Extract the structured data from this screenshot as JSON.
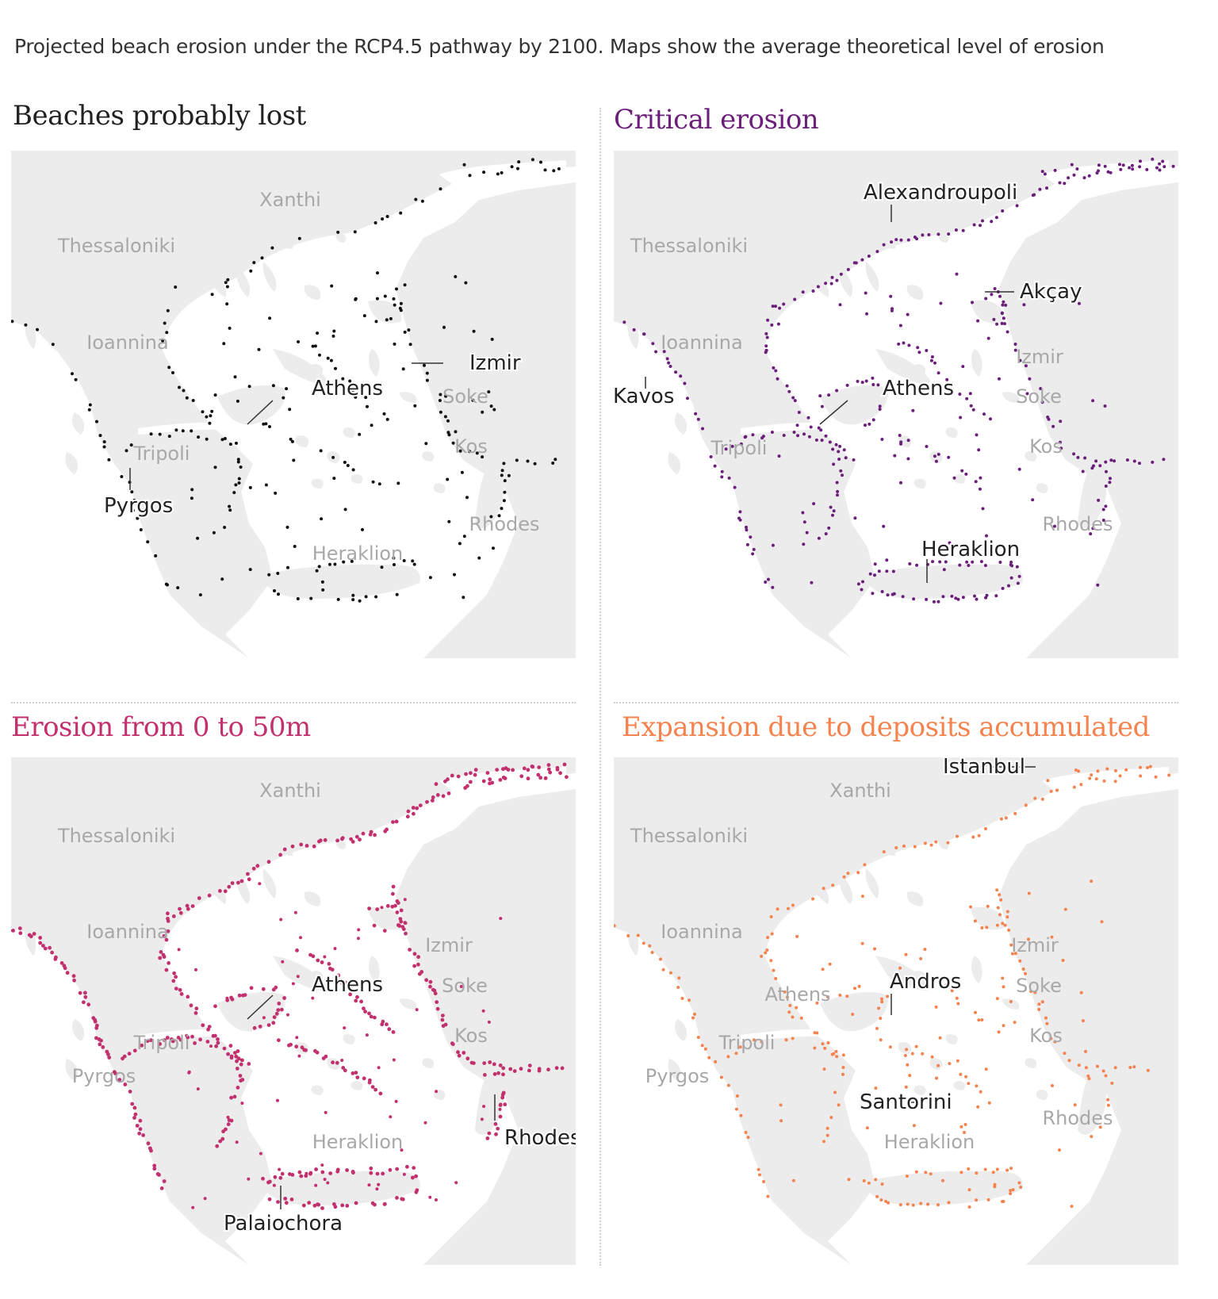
{
  "subtitle": "Projected beach erosion under the RCP4.5 pathway by 2100. Maps show the average theoretical level of erosion",
  "colors": {
    "land": "#ececec",
    "sea": "#ffffff",
    "label_grey": "#a8a8a8",
    "label_dark": "#222222"
  },
  "panels": [
    {
      "title": "Beaches probably lost",
      "color": "#111111",
      "grey_labels": [
        "Xanthi",
        "Thessaloniki",
        "Ioannina",
        "Soke",
        "Tripoli",
        "Kos",
        "Rhodes",
        "Heraklion"
      ],
      "dark_labels": [
        "Izmir",
        "Athens",
        "Pyrgos"
      ]
    },
    {
      "title": "Critical erosion",
      "color": "#6b1f7b",
      "grey_labels": [
        "Thessaloniki",
        "Ioannina",
        "Izmir",
        "Soke",
        "Tripoli",
        "Kos",
        "Rhodes"
      ],
      "dark_labels": [
        "Alexandroupoli",
        "Akçay",
        "Kavos",
        "Athens",
        "Heraklion"
      ]
    },
    {
      "title": "Erosion from 0 to 50m",
      "color": "#c2306e",
      "grey_labels": [
        "Xanthi",
        "Thessaloniki",
        "Ioannina",
        "Izmir",
        "Soke",
        "Tripoli",
        "Kos",
        "Pyrgos",
        "Heraklion"
      ],
      "dark_labels": [
        "Athens",
        "Rhodes",
        "Palaiochora"
      ]
    },
    {
      "title": "Expansion due to deposits accumulated",
      "color": "#f4834f",
      "grey_labels": [
        "Xanthi",
        "Thessaloniki",
        "Ioannina",
        "Izmir",
        "Soke",
        "Athens",
        "Tripoli",
        "Kos",
        "Pyrgos",
        "Rhodes",
        "Heraklion"
      ],
      "dark_labels": [
        "Istanbul",
        "Andros",
        "Santorini"
      ]
    }
  ]
}
